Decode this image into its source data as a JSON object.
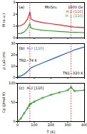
{
  "chart_data": [
    {
      "type": "line",
      "panel": "(a)",
      "title": "MnSn₂",
      "x": [
        2,
        20,
        40,
        60,
        70,
        74,
        80,
        100,
        150,
        200,
        250,
        300,
        320,
        340,
        400
      ],
      "series": [
        {
          "name": "H // [110]",
          "color": "#e8231f",
          "values": [
            1.0,
            1.05,
            1.2,
            1.6,
            2.0,
            2.2,
            1.6,
            1.45,
            1.3,
            1.2,
            1.1,
            1.0,
            0.95,
            0.92,
            0.88
          ]
        },
        {
          "name": "H ⊥ [110]",
          "color": "#2e9e2e",
          "values": [
            0.35,
            0.38,
            0.5,
            0.8,
            1.1,
            1.2,
            0.85,
            0.75,
            0.65,
            0.6,
            0.55,
            0.5,
            0.48,
            0.47,
            0.45
          ]
        }
      ],
      "annotations": [
        {
          "text": "1000 Oe",
          "color": "#000000"
        },
        {
          "text": "H // [110]",
          "color": "#e8231f"
        },
        {
          "text": "H ⊥ [110]",
          "color": "#2e9e2e"
        }
      ],
      "vlines": [
        74,
        320
      ],
      "xlim": [
        0,
        400
      ],
      "xticks": [
        0,
        100,
        200,
        300,
        400
      ],
      "ylim": [
        0,
        3
      ],
      "yticks": [
        0,
        1,
        2,
        3
      ],
      "ylabel": "M (a.u.)",
      "tick_labels": "y"
    },
    {
      "type": "line",
      "panel": "(b)",
      "x": [
        2,
        20,
        40,
        60,
        70,
        74,
        80,
        100,
        150,
        200,
        250,
        300,
        320,
        340,
        400
      ],
      "series": [
        {
          "name": "H // [110]",
          "color": "#1f5fc8",
          "values": [
            1,
            1.5,
            3,
            5.5,
            7,
            7.6,
            8.5,
            10,
            13,
            16,
            19,
            22,
            23,
            24.5,
            27
          ]
        }
      ],
      "annotations": [
        {
          "text": "H // [110]",
          "color": "#1f5fc8"
        },
        {
          "text": "TN2~74 K",
          "color": "#000000"
        },
        {
          "text": "TN1~320 K",
          "color": "#000000"
        }
      ],
      "vlines": [
        74,
        320
      ],
      "xlim": [
        0,
        400
      ],
      "xticks": [
        0,
        100,
        200,
        300,
        400
      ],
      "ylim": [
        0,
        30
      ],
      "yticks": [
        0,
        10,
        20,
        30
      ],
      "ylabel": "ρ (μΩ cm)",
      "tick_labels": "y"
    },
    {
      "type": "line",
      "panel": "(c)",
      "x": [
        2,
        20,
        40,
        60,
        70,
        74,
        80,
        100,
        150,
        200,
        250,
        300,
        320,
        340,
        400
      ],
      "series": [
        {
          "name": "H // [110]",
          "color": "#2e9e2e",
          "marker": "circle",
          "values": [
            0.5,
            8,
            22,
            35,
            42,
            45,
            47,
            52,
            62,
            70,
            76,
            82,
            90,
            80,
            82
          ]
        }
      ],
      "annotations": [
        {
          "text": "H // [110]",
          "color": "#000000"
        }
      ],
      "vlines": [
        74,
        320
      ],
      "xlim": [
        0,
        400
      ],
      "xticks": [
        0,
        100,
        200,
        300,
        400
      ],
      "ylim": [
        0,
        100
      ],
      "yticks": [
        0,
        50,
        100
      ],
      "xlabel": "T (K)",
      "ylabel": "Cp (J/mol K)",
      "tick_labels": true
    }
  ]
}
